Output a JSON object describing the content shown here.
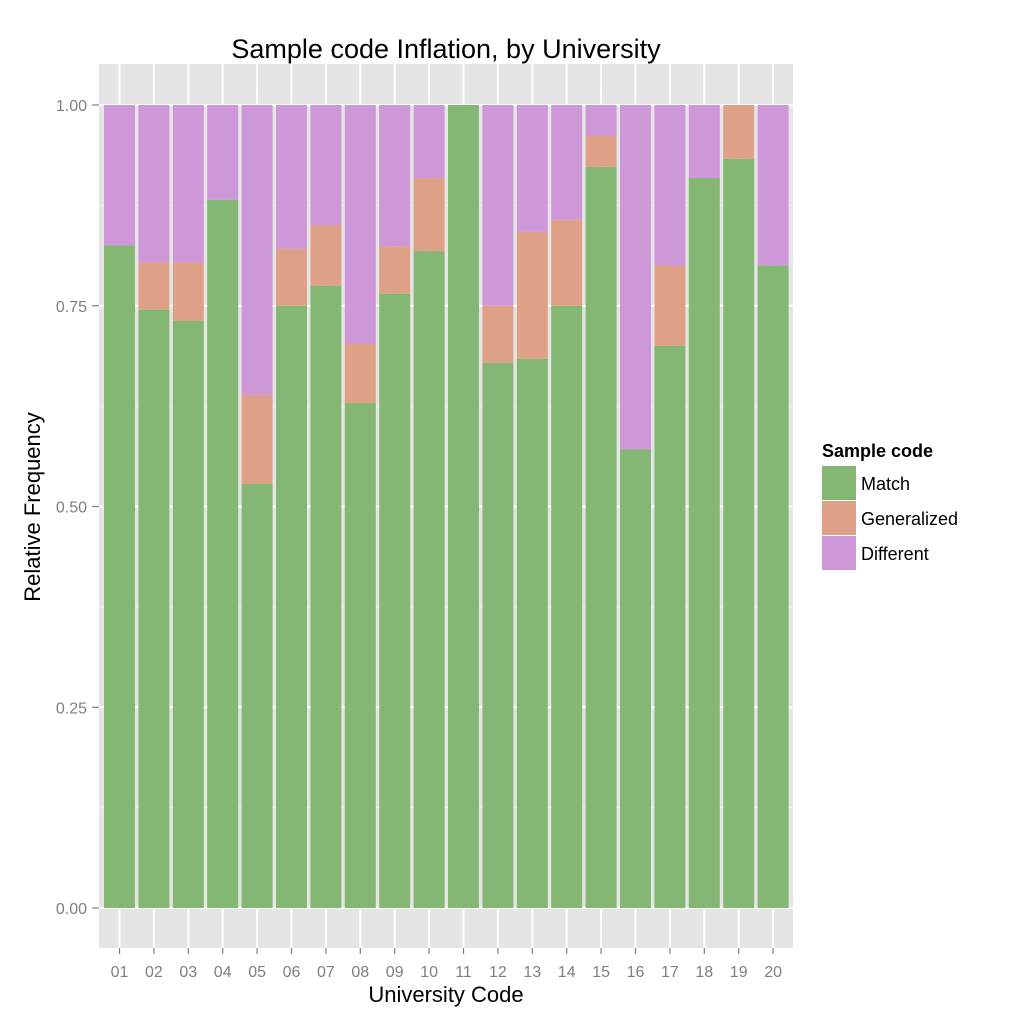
{
  "chart_data": {
    "type": "bar",
    "stacked": true,
    "title": "Sample code Inflation, by University",
    "xlabel": "University Code",
    "ylabel": "Relative Frequency",
    "ylim": [
      0,
      1
    ],
    "yticks": [
      "0.00",
      "0.25",
      "0.50",
      "0.75",
      "1.00"
    ],
    "ytick_values": [
      0,
      0.25,
      0.5,
      0.75,
      1.0
    ],
    "grid": true,
    "categories": [
      "01",
      "02",
      "03",
      "04",
      "05",
      "06",
      "07",
      "08",
      "09",
      "10",
      "11",
      "12",
      "13",
      "14",
      "15",
      "16",
      "17",
      "18",
      "19",
      "20"
    ],
    "series": [
      {
        "name": "Match",
        "color": "#83b773",
        "values": [
          0.825,
          0.745,
          0.731,
          0.882,
          0.528,
          0.75,
          0.775,
          0.629,
          0.765,
          0.818,
          1.0,
          0.679,
          0.684,
          0.75,
          0.923,
          0.571,
          0.7,
          0.909,
          0.933,
          0.8
        ]
      },
      {
        "name": "Generalized",
        "color": "#dea087",
        "values": [
          0.0,
          0.059,
          0.073,
          0.0,
          0.111,
          0.071,
          0.075,
          0.074,
          0.059,
          0.091,
          0.0,
          0.071,
          0.158,
          0.107,
          0.039,
          0.0,
          0.1,
          0.0,
          0.067,
          0.0
        ]
      },
      {
        "name": "Different",
        "color": "#cd97d8",
        "values": [
          0.175,
          0.196,
          0.196,
          0.118,
          0.361,
          0.179,
          0.15,
          0.297,
          0.176,
          0.091,
          0.0,
          0.25,
          0.158,
          0.143,
          0.038,
          0.429,
          0.2,
          0.091,
          0.0,
          0.2
        ]
      }
    ],
    "legend": {
      "title": "Sample code",
      "position": "right"
    }
  }
}
